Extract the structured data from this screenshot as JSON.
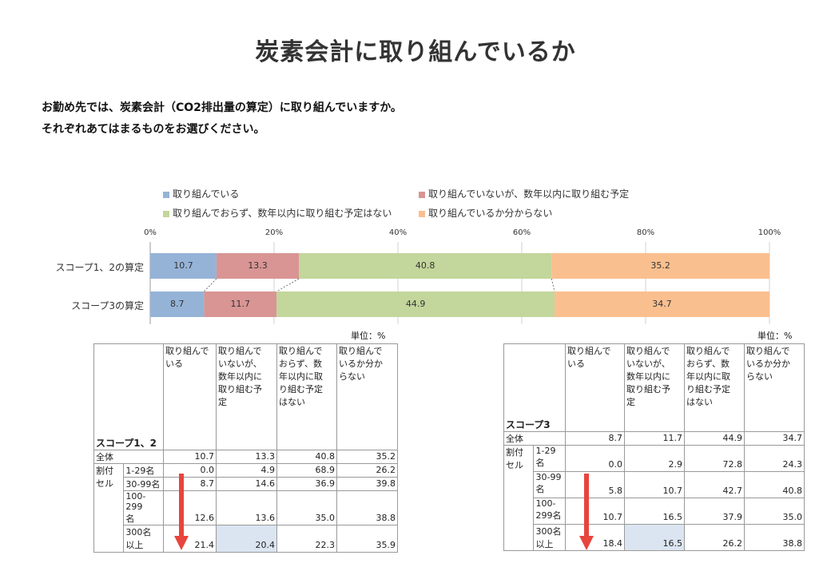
{
  "title": "炭素会計に取り組んでいるか",
  "question": {
    "line1": "お勤め先では、炭素会計（CO2排出量の算定）に取り組んでいますか。",
    "line2": "それぞれあてはまるものをお選びください。"
  },
  "chart_data": {
    "type": "bar",
    "orientation": "horizontal-stacked-100",
    "categories": [
      "スコープ1、2の算定",
      "スコープ3の算定"
    ],
    "series": [
      {
        "name": "取り組んでいる",
        "color": "#95b3d7",
        "values": [
          10.7,
          8.7
        ]
      },
      {
        "name": "取り組んでいないが、数年以内に取り組む予定",
        "color": "#d99594",
        "values": [
          13.3,
          11.7
        ]
      },
      {
        "name": "取り組んでおらず、数年以内に取り組む予定はない",
        "color": "#c3d69b",
        "values": [
          40.8,
          44.9
        ]
      },
      {
        "name": "取り組んでいるか分からない",
        "color": "#fabf8f",
        "values": [
          35.2,
          34.7
        ]
      }
    ],
    "xticks": [
      "0%",
      "20%",
      "40%",
      "60%",
      "80%",
      "100%"
    ],
    "xlim": [
      0,
      100
    ],
    "legend": "top"
  },
  "unit_label": "単位：%",
  "table_headers": [
    "取り組んでいる",
    "取り組んでいないが、数年以内に取り組む予定",
    "取り組んでおらず、数年以内に取り組む予定はない",
    "取り組んでいるか分からない"
  ],
  "table_headers_left": [
    "取り組んで\nいる",
    "取り組んで\nいないが、\n数年以内に\n取り組む予\n定",
    "取り組んで\nおらず、数\n年以内に取\nり組む予定\nはない",
    "取り組んで\nいるか分か\nらない"
  ],
  "table_headers_right": [
    "取り組んで\nいる",
    "取り組んで\nいないが、\n数年以内に\n取り組む予\n定",
    "取り組んで\nおらず、数\n年以内に取\nり組む予定\nはない",
    "取り組んで\nいるか分か\nらない"
  ],
  "table_left": {
    "scope": "スコープ1、2",
    "total_label": "全体",
    "total_values": [
      "10.7",
      "13.3",
      "40.8",
      "35.2"
    ],
    "group_label": "割付\nセル",
    "rows": [
      {
        "label": "1-29名",
        "values": [
          "0.0",
          "4.9",
          "68.9",
          "26.2"
        ]
      },
      {
        "label": "30-99名",
        "values": [
          "8.7",
          "14.6",
          "36.9",
          "39.8"
        ]
      },
      {
        "label": "100-299\n名",
        "values": [
          "12.6",
          "13.6",
          "35.0",
          "38.8"
        ]
      },
      {
        "label": "300名\n以上",
        "values": [
          "21.4",
          "20.4",
          "22.3",
          "35.9"
        ]
      }
    ]
  },
  "table_right": {
    "scope": "スコープ3",
    "total_label": "全体",
    "total_values": [
      "8.7",
      "11.7",
      "44.9",
      "34.7"
    ],
    "group_label": "割付\nセル",
    "rows": [
      {
        "label": "1-29\n名",
        "values": [
          "0.0",
          "2.9",
          "72.8",
          "24.3"
        ]
      },
      {
        "label": "30-99\n名",
        "values": [
          "5.8",
          "10.7",
          "42.7",
          "40.8"
        ]
      },
      {
        "label": "100-\n299名",
        "values": [
          "10.7",
          "16.5",
          "37.9",
          "35.0"
        ]
      },
      {
        "label": "300名\n以上",
        "values": [
          "18.4",
          "16.5",
          "26.2",
          "38.8"
        ]
      }
    ]
  },
  "colors": {
    "arrow": "#e8453c",
    "highlight": "#dbe5f1"
  }
}
